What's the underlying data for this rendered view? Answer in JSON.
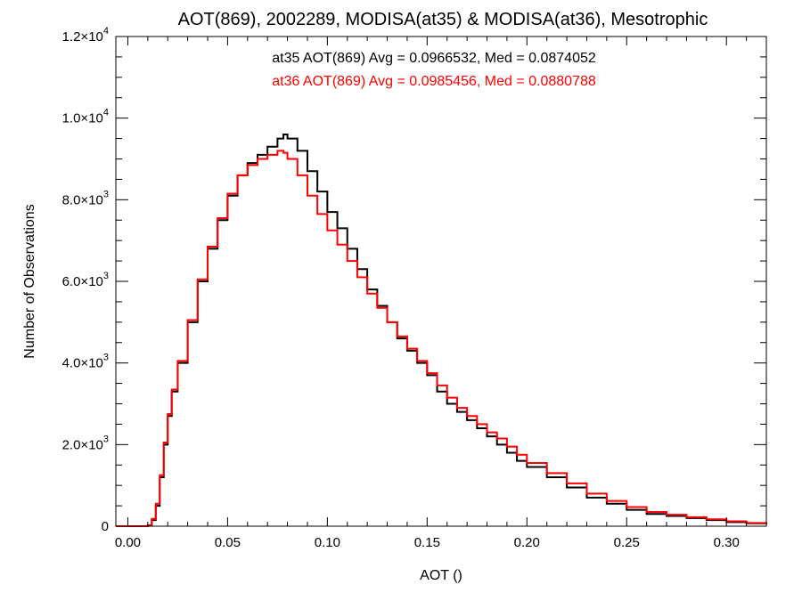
{
  "chart_data": {
    "type": "line",
    "title": "AOT(869), 2002289, MODISA(at35) & MODISA(at36), Mesotrophic",
    "xlabel": "AOT ()",
    "ylabel": "Number of Observations",
    "xlim": [
      -0.006,
      0.32
    ],
    "ylim": [
      0,
      12000
    ],
    "x_ticks": [
      0.0,
      0.05,
      0.1,
      0.15,
      0.2,
      0.25,
      0.3
    ],
    "x_tick_labels": [
      "0.00",
      "0.05",
      "0.10",
      "0.15",
      "0.20",
      "0.25",
      "0.30"
    ],
    "y_ticks": [
      {
        "value": 0,
        "mantissa": "0",
        "exp": ""
      },
      {
        "value": 2000,
        "mantissa": "2.0×10",
        "exp": "3"
      },
      {
        "value": 4000,
        "mantissa": "4.0×10",
        "exp": "3"
      },
      {
        "value": 6000,
        "mantissa": "6.0×10",
        "exp": "3"
      },
      {
        "value": 8000,
        "mantissa": "8.0×10",
        "exp": "3"
      },
      {
        "value": 10000,
        "mantissa": "1.0×10",
        "exp": "4"
      },
      {
        "value": 12000,
        "mantissa": "1.2×10",
        "exp": "4"
      }
    ],
    "x_minor_step": 0.01,
    "y_minor_step": 500,
    "grid": false,
    "series": [
      {
        "name": "at35",
        "color": "#000000",
        "annotation": "at35 AOT(869) Avg = 0.0966532, Med = 0.0874052",
        "x": [
          -0.006,
          0.008,
          0.01,
          0.012,
          0.014,
          0.016,
          0.018,
          0.02,
          0.022,
          0.025,
          0.03,
          0.035,
          0.04,
          0.045,
          0.05,
          0.055,
          0.06,
          0.065,
          0.07,
          0.075,
          0.078,
          0.08,
          0.085,
          0.09,
          0.095,
          0.1,
          0.105,
          0.11,
          0.115,
          0.12,
          0.125,
          0.13,
          0.135,
          0.14,
          0.145,
          0.15,
          0.155,
          0.16,
          0.165,
          0.17,
          0.175,
          0.18,
          0.185,
          0.19,
          0.195,
          0.2,
          0.21,
          0.22,
          0.23,
          0.24,
          0.25,
          0.26,
          0.27,
          0.28,
          0.29,
          0.3,
          0.31,
          0.32
        ],
        "values": [
          0,
          0,
          20,
          150,
          500,
          1200,
          2000,
          2700,
          3300,
          4000,
          5000,
          6000,
          6800,
          7500,
          8100,
          8600,
          8900,
          9100,
          9300,
          9500,
          9600,
          9500,
          9200,
          8700,
          8200,
          7700,
          7300,
          6800,
          6300,
          5800,
          5400,
          5000,
          4600,
          4300,
          4000,
          3700,
          3300,
          3000,
          2800,
          2600,
          2400,
          2200,
          2000,
          1800,
          1600,
          1450,
          1200,
          950,
          700,
          550,
          400,
          300,
          250,
          200,
          150,
          100,
          70,
          50
        ]
      },
      {
        "name": "at36",
        "color": "#ff0000",
        "annotation": "at36 AOT(869) Avg = 0.0985456, Med = 0.0880788",
        "x": [
          -0.006,
          0.008,
          0.01,
          0.012,
          0.014,
          0.016,
          0.018,
          0.02,
          0.022,
          0.025,
          0.03,
          0.035,
          0.04,
          0.045,
          0.05,
          0.055,
          0.06,
          0.065,
          0.07,
          0.075,
          0.078,
          0.08,
          0.085,
          0.09,
          0.095,
          0.1,
          0.105,
          0.11,
          0.115,
          0.12,
          0.125,
          0.13,
          0.135,
          0.14,
          0.145,
          0.15,
          0.155,
          0.16,
          0.165,
          0.17,
          0.175,
          0.18,
          0.185,
          0.19,
          0.195,
          0.2,
          0.21,
          0.22,
          0.23,
          0.24,
          0.25,
          0.26,
          0.27,
          0.28,
          0.29,
          0.3,
          0.31,
          0.32
        ],
        "values": [
          0,
          0,
          20,
          180,
          550,
          1250,
          2050,
          2750,
          3350,
          4050,
          5050,
          6050,
          6850,
          7550,
          8150,
          8600,
          8850,
          9000,
          9100,
          9200,
          9150,
          9000,
          8600,
          8100,
          7650,
          7250,
          6900,
          6500,
          6100,
          5700,
          5350,
          5000,
          4650,
          4350,
          4050,
          3750,
          3450,
          3150,
          2900,
          2700,
          2500,
          2300,
          2150,
          1950,
          1750,
          1550,
          1300,
          1050,
          800,
          620,
          470,
          350,
          280,
          220,
          170,
          120,
          80,
          50
        ]
      }
    ]
  }
}
